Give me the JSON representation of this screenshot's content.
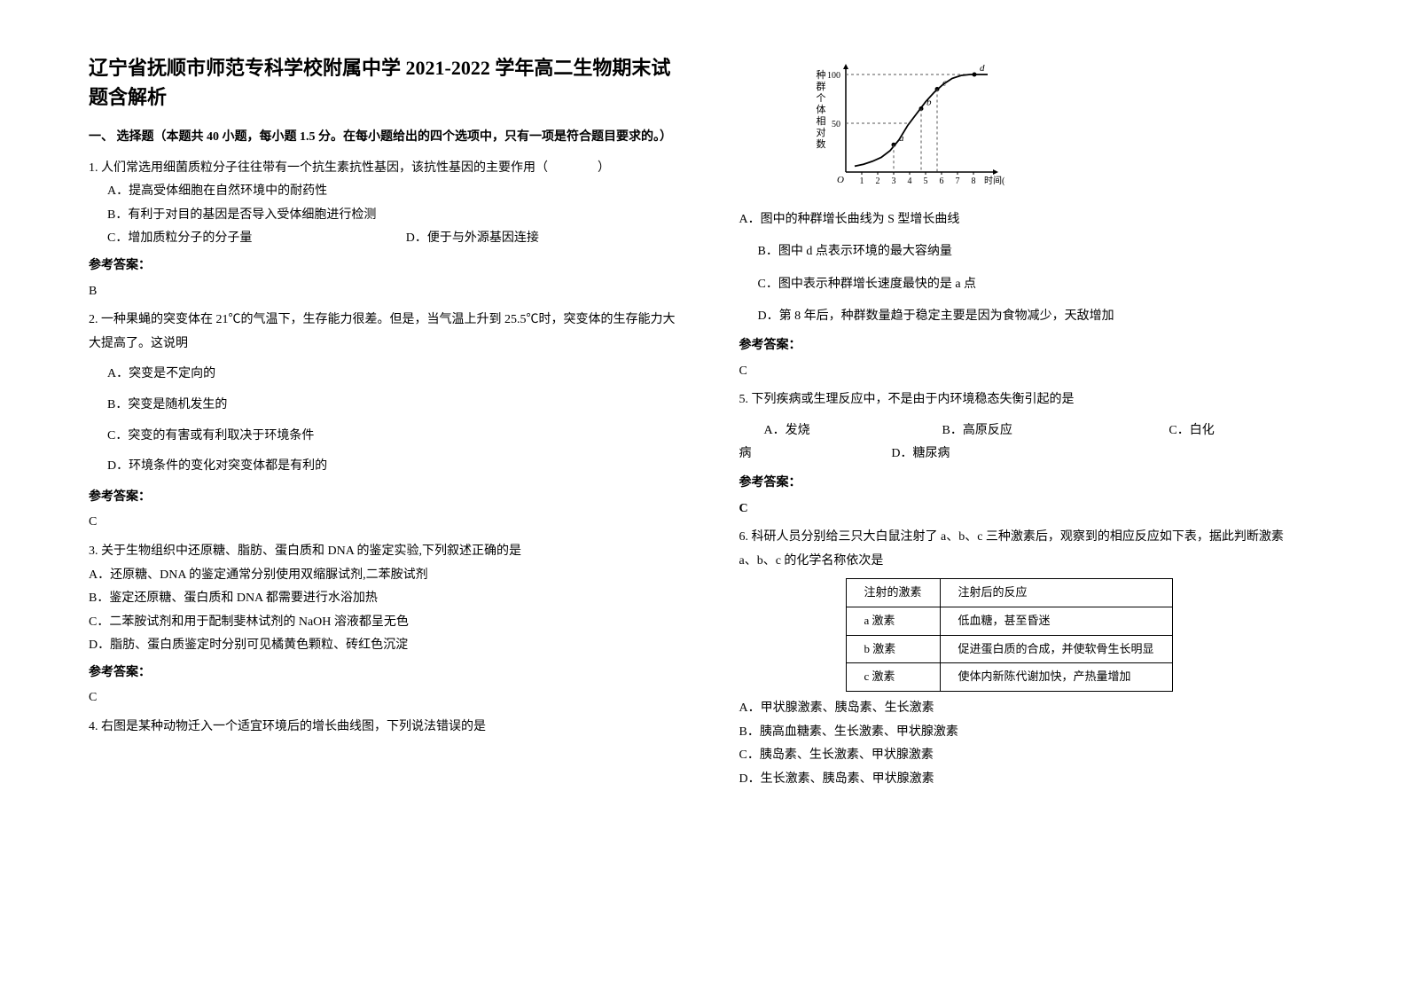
{
  "title": "辽宁省抚顺市师范专科学校附属中学 2021-2022 学年高二生物期末试题含解析",
  "section": "一、 选择题（本题共 40 小题，每小题 1.5 分。在每小题给出的四个选项中，只有一项是符合题目要求的。）",
  "answer_label": "参考答案：",
  "q1": {
    "stem": "1. 人们常选用细菌质粒分子往往带有一个抗生素抗性基因，该抗性基因的主要作用（　　　　）",
    "A": "A．提高受体细胞在自然环境中的耐药性",
    "B": "B．有利于对目的基因是否导入受体细胞进行检测",
    "C": "C．增加质粒分子的分子量",
    "D": "D．便于与外源基因连接",
    "ans": "B"
  },
  "q2": {
    "stem": "2. 一种果蝇的突变体在 21℃的气温下，生存能力很差。但是，当气温上升到 25.5℃时，突变体的生存能力大大提高了。这说明",
    "A": "A．突变是不定向的",
    "B": "B．突变是随机发生的",
    "C": "C．突变的有害或有利取决于环境条件",
    "D": "D．环境条件的变化对突变体都是有利的",
    "ans": "C"
  },
  "q3": {
    "stem": "3. 关于生物组织中还原糖、脂肪、蛋白质和 DNA 的鉴定实验,下列叙述正确的是",
    "A": "A．还原糖、DNA 的鉴定通常分别使用双缩脲试剂,二苯胺试剂",
    "B": "B．鉴定还原糖、蛋白质和 DNA 都需要进行水浴加热",
    "C": "C．二苯胺试剂和用于配制斐林试剂的 NaOH 溶液都呈无色",
    "D": "D．脂肪、蛋白质鉴定时分别可见橘黄色颗粒、砖红色沉淀",
    "ans": "C"
  },
  "q4": {
    "stem": "4. 右图是某种动物迁入一个适宜环境后的增长曲线图，下列说法错误的是",
    "A": "A．图中的种群增长曲线为 S 型增长曲线",
    "B": "B．图中 d 点表示环境的最大容纳量",
    "C": "C．图中表示种群增长速度最快的是 a 点",
    "D": "D．第 8 年后，种群数量趋于稳定主要是因为食物减少，天敌增加",
    "ans": "C",
    "chart": {
      "y_label": "种群个体相对数",
      "x_label": "时间(年)",
      "y_max": 100,
      "y_mid": 50,
      "x_ticks": [
        "1",
        "2",
        "3",
        "4",
        "5",
        "6",
        "7",
        "8"
      ],
      "curve": [
        [
          10,
          6
        ],
        [
          20,
          8
        ],
        [
          30,
          11
        ],
        [
          40,
          15
        ],
        [
          50,
          22
        ],
        [
          60,
          33
        ],
        [
          70,
          48
        ],
        [
          80,
          60
        ],
        [
          90,
          72
        ],
        [
          100,
          82
        ],
        [
          110,
          90
        ],
        [
          120,
          96
        ],
        [
          130,
          99
        ],
        [
          140,
          100
        ],
        [
          150,
          100
        ],
        [
          160,
          100
        ]
      ],
      "a_x": 54,
      "a_y": 28,
      "b_x": 85,
      "b_y": 65,
      "c_x": 103,
      "c_y": 85,
      "d_x": 145,
      "d_y": 100,
      "dash_color": "#555",
      "line_color": "#000",
      "bg": "#ffffff"
    }
  },
  "q5": {
    "stem": "5. 下列疾病或生理反应中，不是由于内环境稳态失衡引起的是",
    "A": "A．发烧",
    "B": "B．高原反应",
    "C": "C．白化",
    "C2": "病",
    "D": "D．糖尿病",
    "ans": "C"
  },
  "q6": {
    "stem1": "6. 科研人员分别给三只大白鼠注射了 a、b、c 三种激素后，观察到的相应反应如下表，据此判断激素",
    "stem2": "a、b、c 的化学名称依次是",
    "th1": "注射的激素",
    "th2": "注射后的反应",
    "r1c1": "a 激素",
    "r1c2": "低血糖，甚至昏迷",
    "r2c1": "b 激素",
    "r2c2": "促进蛋白质的合成，并使软骨生长明显",
    "r3c1": "c 激素",
    "r3c2": "使体内新陈代谢加快，产热量增加",
    "A": "A．甲状腺激素、胰岛素、生长激素",
    "B": "B．胰高血糖素、生长激素、甲状腺激素",
    "C": "C．胰岛素、生长激素、甲状腺激素",
    "D": "D．生长激素、胰岛素、甲状腺激素"
  }
}
